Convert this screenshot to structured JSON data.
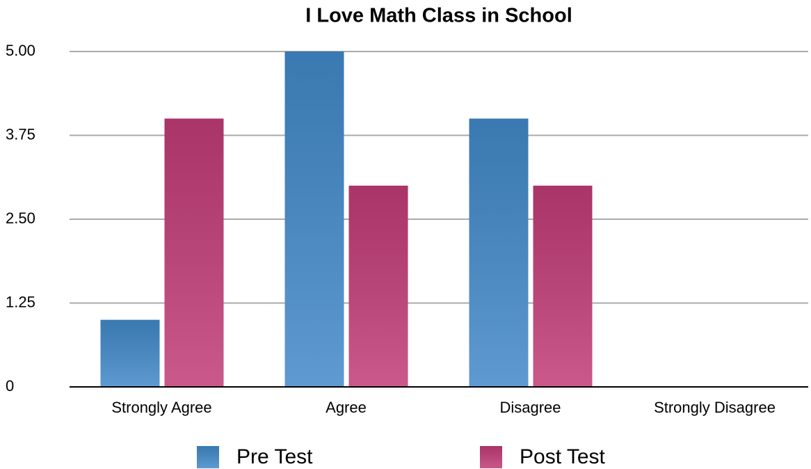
{
  "chart_data": {
    "type": "bar",
    "title": "I Love Math Class in School",
    "categories": [
      "Strongly Agree",
      "Agree",
      "Disagree",
      "Strongly Disagree"
    ],
    "series": [
      {
        "name": "Pre Test",
        "color": "#4289c9",
        "values": [
          1,
          5,
          4,
          0
        ]
      },
      {
        "name": "Post Test",
        "color": "#c13c77",
        "values": [
          4,
          3,
          3,
          0
        ]
      }
    ],
    "ylim": [
      0,
      5
    ],
    "yticks": [
      0,
      1.25,
      {
        "value": 2.5,
        "label": "2.50"
      },
      3.75,
      {
        "value": 5,
        "label": "5.00"
      }
    ],
    "grid": true
  }
}
